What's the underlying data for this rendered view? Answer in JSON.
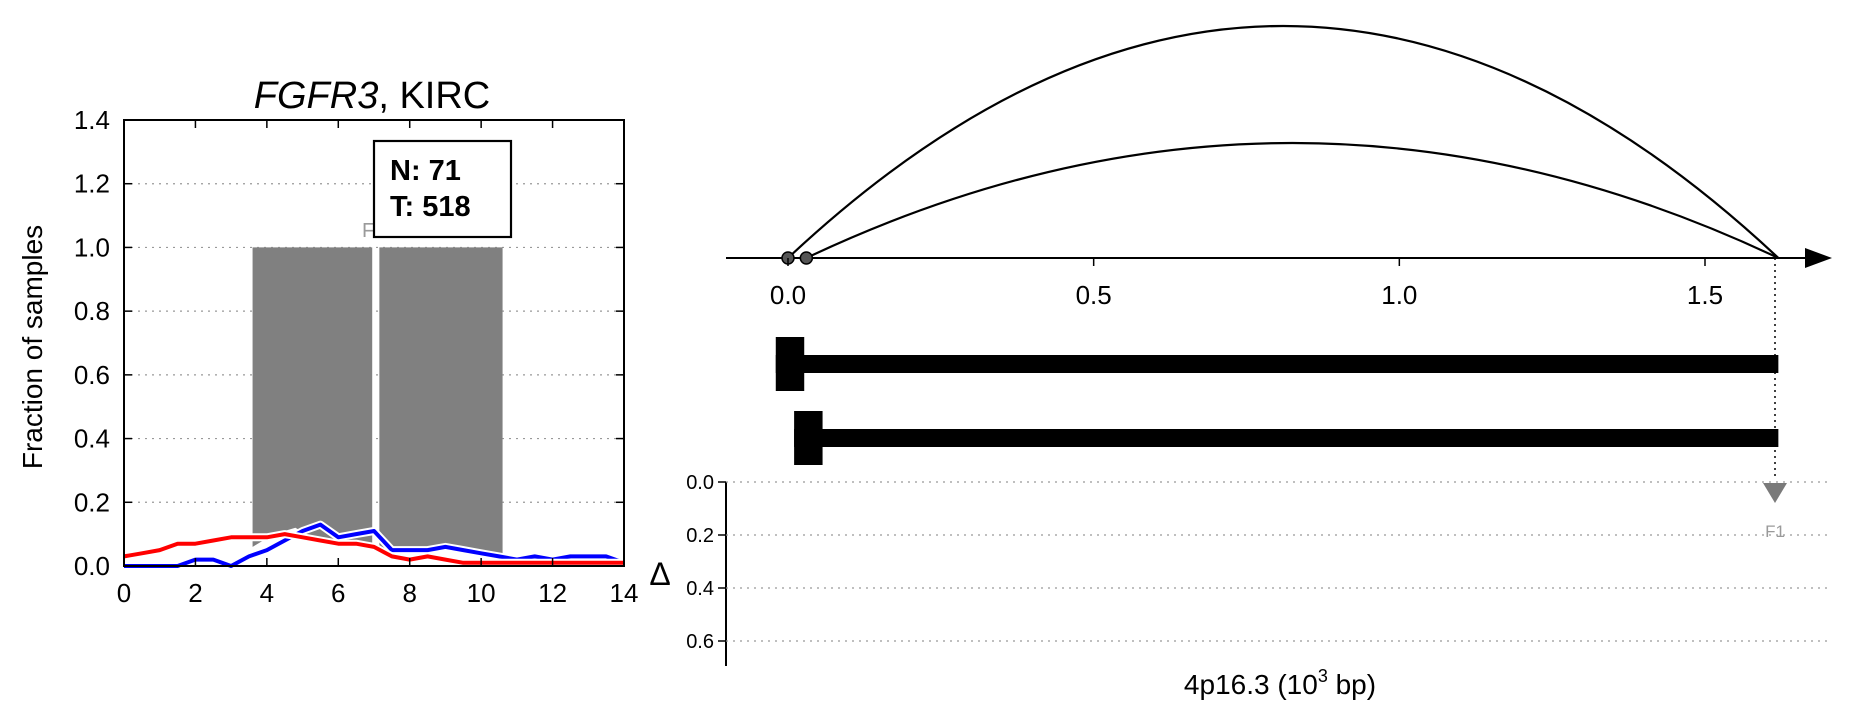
{
  "title": {
    "gene": "FGFR3",
    "rest": ", KIRC"
  },
  "chart_data": [
    {
      "type": "line",
      "title": "FGFR3, KIRC",
      "ylabel": "Fraction of samples",
      "xlim": [
        0,
        14
      ],
      "ylim": [
        0,
        1.4
      ],
      "xticks": [
        "0",
        "2",
        "4",
        "6",
        "8",
        "10",
        "12",
        "14"
      ],
      "yticks": [
        "0.0",
        "0.2",
        "0.4",
        "0.6",
        "0.8",
        "1.0",
        "1.2",
        "1.4"
      ],
      "grid": "horizontal dotted",
      "counts": {
        "n_label": "N: 71",
        "t_label": "T: 518"
      },
      "bars": {
        "label": "F1",
        "color": "#808080",
        "segments": [
          {
            "x0": 3.6,
            "x1": 6.95,
            "y": 1.0
          },
          {
            "x0": 7.15,
            "x1": 10.6,
            "y": 1.0
          }
        ],
        "bottom_profile": {
          "x": [
            3.6,
            4.2,
            4.8,
            5.4,
            6.0,
            6.6,
            6.95,
            7.15,
            7.6,
            8.3,
            9.0,
            9.6,
            10.2,
            10.6
          ],
          "y": [
            0.06,
            0.1,
            0.12,
            0.08,
            0.06,
            0.06,
            0.05,
            0.05,
            0.04,
            0.04,
            0.05,
            0.05,
            0.04,
            0.04
          ]
        }
      },
      "series": [
        {
          "color": "#0000ff",
          "x": [
            0,
            0.5,
            1,
            1.5,
            2,
            2.5,
            3,
            3.5,
            4,
            4.5,
            5,
            5.5,
            6,
            6.5,
            7,
            7.5,
            8,
            8.5,
            9,
            9.5,
            10,
            10.5,
            11,
            11.5,
            12,
            12.5,
            13,
            13.5,
            14
          ],
          "y": [
            0,
            0,
            0,
            0,
            0.02,
            0.02,
            0,
            0.03,
            0.05,
            0.08,
            0.11,
            0.13,
            0.09,
            0.1,
            0.11,
            0.05,
            0.05,
            0.05,
            0.06,
            0.05,
            0.04,
            0.03,
            0.02,
            0.03,
            0.02,
            0.03,
            0.03,
            0.03,
            0.01
          ]
        },
        {
          "color": "#ff0000",
          "x": [
            0,
            0.5,
            1,
            1.5,
            2,
            2.5,
            3,
            3.5,
            4,
            4.5,
            5,
            5.5,
            6,
            6.5,
            7,
            7.5,
            8,
            8.5,
            9,
            9.5,
            10,
            10.5,
            11,
            11.5,
            12,
            12.5,
            13,
            13.5,
            14
          ],
          "y": [
            0.03,
            0.04,
            0.05,
            0.07,
            0.07,
            0.08,
            0.09,
            0.09,
            0.09,
            0.1,
            0.09,
            0.08,
            0.07,
            0.07,
            0.06,
            0.03,
            0.02,
            0.03,
            0.02,
            0.01,
            0.01,
            0.01,
            0.01,
            0.01,
            0.01,
            0.01,
            0.01,
            0.01,
            0.01
          ]
        }
      ]
    },
    {
      "type": "diagram",
      "xticks": [
        "0.0",
        "0.5",
        "1.0",
        "1.5"
      ],
      "xlim": [
        -0.1,
        1.7
      ],
      "xlabel_main": "4p16.3 (10",
      "xlabel_sup": "3",
      "xlabel_tail": " bp)",
      "junctions": [
        {
          "start": 0.0,
          "end": 1.62,
          "height": 1.0
        },
        {
          "start": 0.03,
          "end": 1.62,
          "height": 0.5
        }
      ],
      "transcripts": [
        {
          "start": -0.02,
          "end": 1.62,
          "exon_end": 0.02
        },
        {
          "start": 0.01,
          "end": 1.62,
          "exon_end": 0.05
        }
      ],
      "marker": {
        "label": "F1",
        "x": 1.62
      },
      "delta_label": "Δ",
      "delta_ticks": [
        "0.0",
        "0.2",
        "0.4",
        "0.6"
      ]
    }
  ]
}
